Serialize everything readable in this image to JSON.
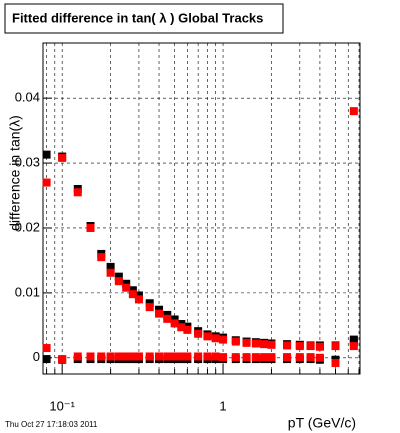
{
  "chart_data": {
    "type": "scatter",
    "title": "Fitted difference in tan( λ )  Global Tracks",
    "y_label": "difference in tan(λ)",
    "x_label": "pT (GeV/c)",
    "timestamp": "Thu Oct 27 17:18:03 2011",
    "x_log": true,
    "grid": true,
    "xlim": [
      0.076,
      7.1
    ],
    "ylim": [
      -0.0025,
      0.0485
    ],
    "xticks": [
      {
        "value": 0.1,
        "label": "10⁻¹"
      },
      1
    ],
    "xminor": [
      0.08,
      0.09,
      0.2,
      0.3,
      0.4,
      0.5,
      0.6,
      0.7,
      0.8,
      0.9,
      2,
      3,
      4,
      5,
      6,
      7
    ],
    "yticks": [
      0,
      0.01,
      0.02,
      0.03,
      0.04
    ],
    "x": [
      0.08,
      0.1,
      0.125,
      0.15,
      0.175,
      0.2,
      0.225,
      0.25,
      0.275,
      0.3,
      0.35,
      0.4,
      0.45,
      0.5,
      0.55,
      0.6,
      0.7,
      0.8,
      0.9,
      1.0,
      1.2,
      1.4,
      1.6,
      1.8,
      2.0,
      2.5,
      3.0,
      3.5,
      4.0,
      5.0,
      6.5
    ],
    "series": [
      {
        "color": "#000000",
        "values": [
          0.0313,
          0.031,
          0.026,
          0.0203,
          0.016,
          0.014,
          0.0125,
          0.0114,
          0.0104,
          0.0096,
          0.0084,
          0.0074,
          0.0066,
          0.0059,
          0.0052,
          0.0048,
          0.0041,
          0.0036,
          0.0033,
          0.0031,
          0.0027,
          0.0025,
          0.0024,
          0.0023,
          0.0022,
          0.0021,
          0.002,
          0.0019,
          0.0019,
          0.0019,
          0.0028
        ]
      },
      {
        "color": "#000000",
        "values": [
          -0.0002,
          -0.0003,
          -0.0002,
          -0.0002,
          -0.0002,
          -0.0002,
          -0.0002,
          -0.0002,
          -0.0002,
          -0.0002,
          -0.0002,
          -0.0002,
          -0.0002,
          -0.0002,
          -0.0002,
          -0.0002,
          -0.0002,
          -0.0002,
          -0.0002,
          -0.0002,
          -0.0002,
          -0.0002,
          -0.0002,
          -0.0002,
          -0.0002,
          -0.0002,
          -0.0002,
          -0.0002,
          -0.0003,
          -0.0003,
          0.0025
        ]
      },
      {
        "color": "#ff0000",
        "values": [
          0.027,
          0.0308,
          0.0255,
          0.02,
          0.0155,
          0.0131,
          0.0118,
          0.0108,
          0.0098,
          0.009,
          0.0078,
          0.0068,
          0.006,
          0.0053,
          0.0047,
          0.0043,
          0.0037,
          0.0033,
          0.003,
          0.0028,
          0.0025,
          0.0023,
          0.0022,
          0.0021,
          0.002,
          0.0019,
          0.0018,
          0.0018,
          0.0017,
          0.0018,
          0.038
        ]
      },
      {
        "color": "#ff0000",
        "values": [
          0.0015,
          -0.0002,
          0.0002,
          0.0002,
          0.0002,
          0.0002,
          0.0002,
          0.0002,
          0.0002,
          0.0002,
          0.0002,
          0.0002,
          0.0002,
          0.0002,
          0.0002,
          0.0002,
          0.0002,
          0.0002,
          0.0002,
          0.0001,
          0.0001,
          0.0001,
          0.0001,
          0.0001,
          0.0001,
          0.0001,
          0.0001,
          0.0001,
          0.0,
          -0.0008,
          0.0018
        ]
      }
    ]
  }
}
